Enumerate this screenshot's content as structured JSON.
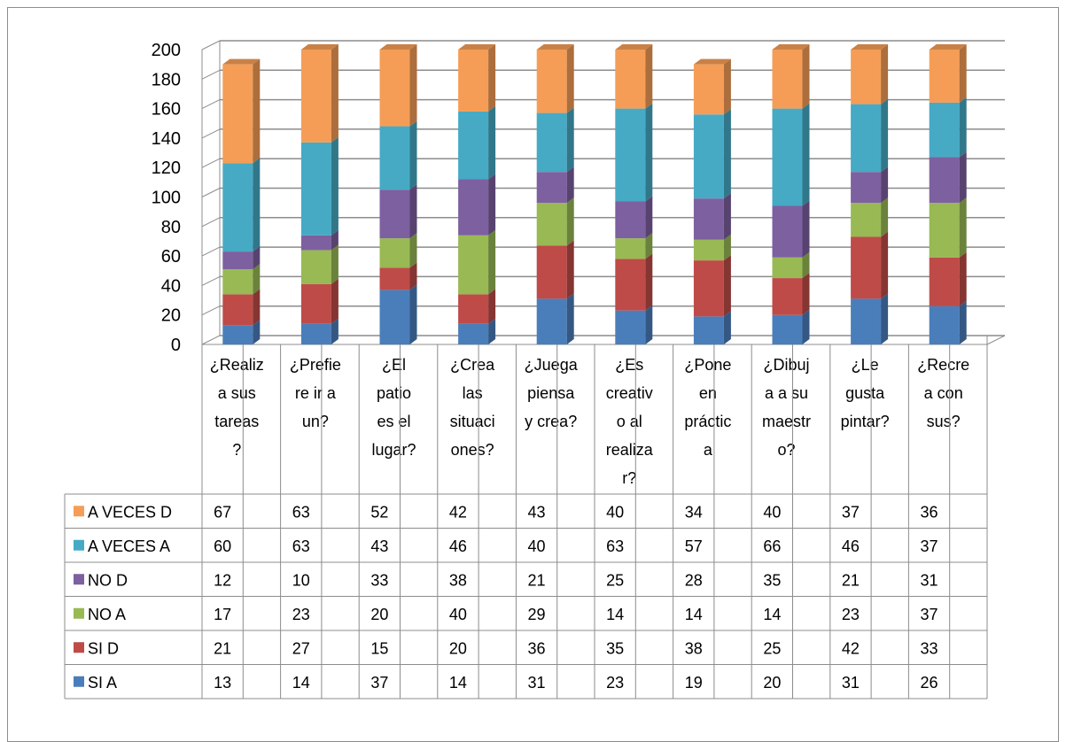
{
  "chart_data": {
    "type": "bar",
    "stacked": true,
    "style": "3d-stacked-column-with-data-table",
    "categories": [
      "¿Realiza sus tareas?",
      "¿Prefiere ir a un?",
      "¿El patio es el lugar?",
      "¿Crea las situaciones?",
      "¿Juega piensa y crea?",
      "¿Es creativo al realizar?",
      "¿Pone en práctica",
      "¿Dibuja a su maestro?",
      "¿Le gusta pintar?",
      "¿Recrea con sus?"
    ],
    "category_lines": [
      [
        "¿Realiz",
        "a sus",
        "tareas",
        "?"
      ],
      [
        "¿Prefie",
        "re ir a",
        "un?"
      ],
      [
        "¿El",
        "patio",
        "es el",
        "lugar?"
      ],
      [
        "¿Crea",
        "las",
        "situaci",
        "ones?"
      ],
      [
        "¿Juega",
        "piensa",
        "y crea?"
      ],
      [
        "¿Es",
        "creativ",
        "o al",
        "realiza",
        "r?"
      ],
      [
        "¿Pone",
        "en",
        "práctic",
        "a"
      ],
      [
        "¿Dibuj",
        "a a su",
        "maestr",
        "o?"
      ],
      [
        "¿Le",
        "gusta",
        "pintar?"
      ],
      [
        "¿Recre",
        "a con",
        "sus?"
      ]
    ],
    "series": [
      {
        "name": "SI A",
        "color": "#4A7EBB",
        "values": [
          13,
          14,
          37,
          14,
          31,
          23,
          19,
          20,
          31,
          26
        ]
      },
      {
        "name": "SI D",
        "color": "#BE4B48",
        "values": [
          21,
          27,
          15,
          20,
          36,
          35,
          38,
          25,
          42,
          33
        ]
      },
      {
        "name": "NO  A",
        "color": "#98B954",
        "values": [
          17,
          23,
          20,
          40,
          29,
          14,
          14,
          14,
          23,
          37
        ]
      },
      {
        "name": "NO  D",
        "color": "#7D60A0",
        "values": [
          12,
          10,
          33,
          38,
          21,
          25,
          28,
          35,
          21,
          31
        ]
      },
      {
        "name": "A VECES A",
        "color": "#46AAC5",
        "values": [
          60,
          63,
          43,
          46,
          40,
          63,
          57,
          66,
          46,
          37
        ]
      },
      {
        "name": "A VECES D",
        "color": "#F59D56",
        "values": [
          67,
          63,
          52,
          42,
          43,
          40,
          34,
          40,
          37,
          36
        ]
      }
    ],
    "table_row_order": [
      "A VECES D",
      "A VECES A",
      "NO  D",
      "NO  A",
      "SI D",
      "SI A"
    ],
    "ylim": [
      0,
      200
    ],
    "yticks": [
      0,
      20,
      40,
      60,
      80,
      100,
      120,
      140,
      160,
      180,
      200
    ],
    "grid": true,
    "title": "",
    "xlabel": "",
    "ylabel": ""
  }
}
